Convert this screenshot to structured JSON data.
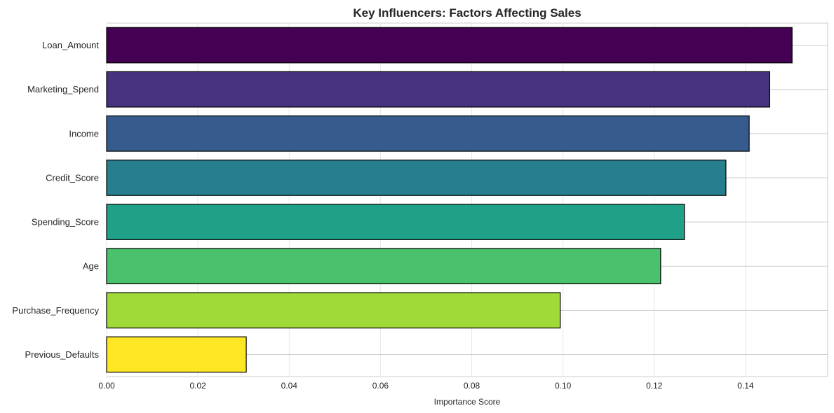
{
  "chart_data": {
    "type": "bar",
    "orientation": "horizontal",
    "title": "Key Influencers: Factors Affecting Sales",
    "xlabel": "Importance Score",
    "ylabel": "",
    "xlim": [
      0,
      0.158
    ],
    "xticks": [
      "0.00",
      "0.02",
      "0.04",
      "0.06",
      "0.08",
      "0.10",
      "0.12",
      "0.14"
    ],
    "grid": true,
    "categories": [
      "Loan_Amount",
      "Marketing_Spend",
      "Income",
      "Credit_Score",
      "Spending_Score",
      "Age",
      "Purchase_Frequency",
      "Previous_Defaults"
    ],
    "values": [
      0.1502,
      0.1453,
      0.1408,
      0.1357,
      0.1266,
      0.1214,
      0.0994,
      0.0306
    ],
    "colors": [
      "#440154",
      "#46327e",
      "#365c8d",
      "#277f8e",
      "#1fa187",
      "#4ac16d",
      "#a0da39",
      "#fde725"
    ],
    "edge_color": "#000000"
  }
}
